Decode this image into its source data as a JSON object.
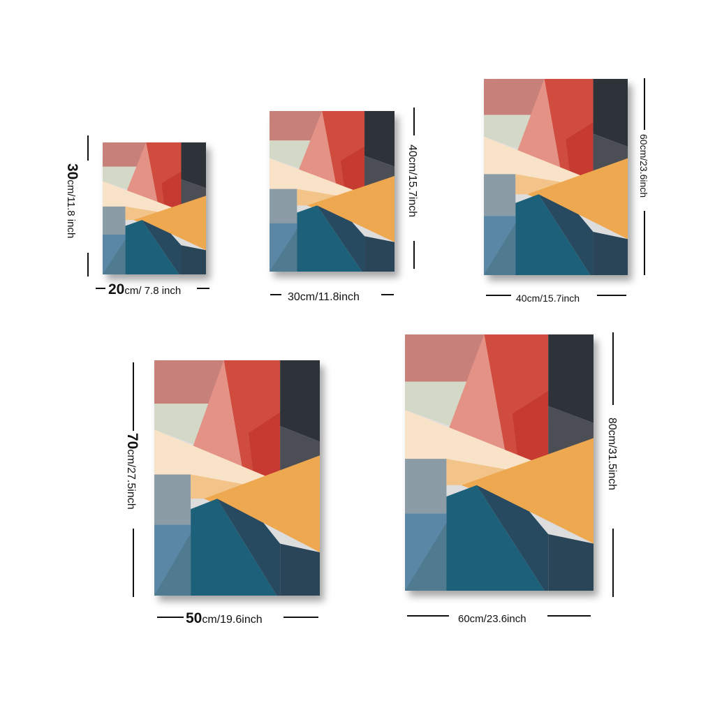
{
  "palette": {
    "pink": "#c8817a",
    "red": "#d04c3e",
    "red_dark": "#c53b31",
    "salmon": "#e59286",
    "sage": "#d4d8c6",
    "cream": "#f9e3c8",
    "charcoal": "#2e3239",
    "slate": "#4b4f55",
    "grey_blue": "#8b9ca6",
    "steel_blue": "#5a87a5",
    "teal": "#1c6079",
    "navy": "#284a61",
    "orange": "#eea84f",
    "peach": "#f2c48a"
  },
  "posters": [
    {
      "id": "20x30",
      "width_label": {
        "big": "20",
        "rest": "cm/ 7.8 inch"
      },
      "height_label": {
        "big": "30",
        "rest": "cm/11.8 inch"
      }
    },
    {
      "id": "30x40",
      "width_label": {
        "big": "",
        "rest": "30cm/11.8inch"
      },
      "height_label": {
        "big": "",
        "rest": "40cm/15.7inch"
      }
    },
    {
      "id": "40x60",
      "width_label": {
        "big": "",
        "rest": "40cm/15.7inch"
      },
      "height_label": {
        "big": "",
        "rest": "60cm/23.6inch"
      }
    },
    {
      "id": "50x70",
      "width_label": {
        "big": "50",
        "rest": "cm/19.6inch"
      },
      "height_label": {
        "big": "70",
        "rest": "cm/27.5inch"
      }
    },
    {
      "id": "60x80",
      "width_label": {
        "big": "",
        "rest": "60cm/23.6inch"
      },
      "height_label": {
        "big": "",
        "rest": "80cm/31.5inch"
      }
    }
  ]
}
